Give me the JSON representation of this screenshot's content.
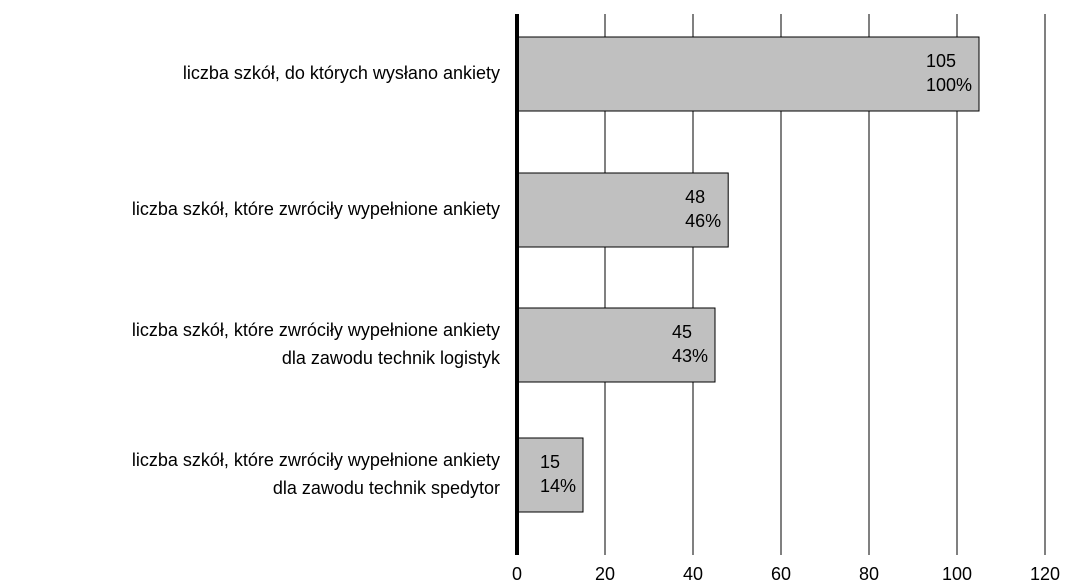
{
  "chart_data": {
    "type": "barh",
    "categories": [
      [
        "liczba szkół, do których wysłano ankiety"
      ],
      [
        "liczba szkół, które zwróciły wypełnione ankiety"
      ],
      [
        "liczba szkół, które zwróciły wypełnione ankiety",
        "dla zawodu technik logistyk"
      ],
      [
        "liczba szkół, które zwróciły wypełnione ankiety",
        "dla zawodu technik spedytor"
      ]
    ],
    "values": [
      105,
      48,
      45,
      15
    ],
    "share_labels": [
      "100%",
      "46%",
      "43%",
      "14%"
    ],
    "color": "#c0c0c0",
    "xlim": [
      0,
      120
    ],
    "xticks": [
      0,
      20,
      40,
      60,
      80,
      100,
      120
    ],
    "grid": true
  }
}
